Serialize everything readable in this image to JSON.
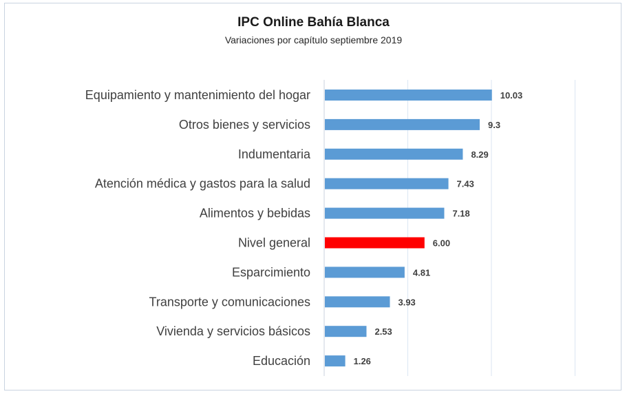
{
  "chart_data": {
    "type": "bar",
    "orientation": "horizontal",
    "title": "IPC Online Bahía Blanca",
    "subtitle": "Variaciones por capítulo septiembre 2019",
    "categories": [
      "Equipamiento y mantenimiento del hogar",
      "Otros bienes y servicios",
      "Indumentaria",
      "Atención médica y gastos para la salud",
      "Alimentos y bebidas",
      "Nivel general",
      "Esparcimiento",
      "Transporte y comunicaciones",
      "Vivienda y servicios básicos",
      "Educación"
    ],
    "values": [
      10.03,
      9.3,
      8.29,
      7.43,
      7.18,
      6.0,
      4.81,
      3.93,
      2.53,
      1.26
    ],
    "value_labels": [
      "10.03",
      "9.3",
      "8.29",
      "7.43",
      "7.18",
      "6.00",
      "4.81",
      "3.93",
      "2.53",
      "1.26"
    ],
    "highlight_category": "Nivel general",
    "xlim": [
      0,
      15
    ],
    "gridlines": [
      0,
      5,
      10,
      15
    ],
    "grid": true,
    "colors": {
      "bar": "#5b9bd5",
      "highlight": "#ff0000",
      "grid": "#dbe6f2"
    }
  }
}
